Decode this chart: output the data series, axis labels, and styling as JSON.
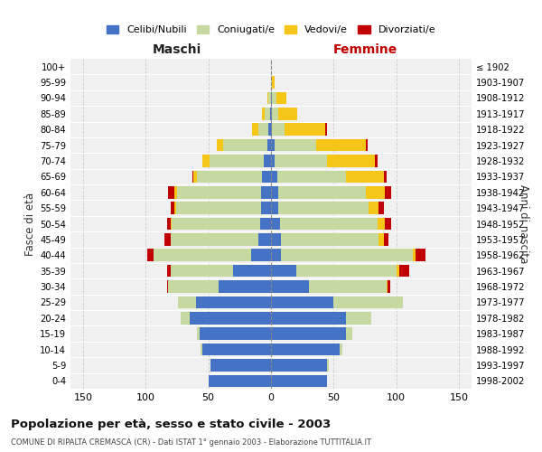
{
  "age_groups": [
    "0-4",
    "5-9",
    "10-14",
    "15-19",
    "20-24",
    "25-29",
    "30-34",
    "35-39",
    "40-44",
    "45-49",
    "50-54",
    "55-59",
    "60-64",
    "65-69",
    "70-74",
    "75-79",
    "80-84",
    "85-89",
    "90-94",
    "95-99",
    "100+"
  ],
  "birth_years": [
    "1998-2002",
    "1993-1997",
    "1988-1992",
    "1983-1987",
    "1978-1982",
    "1973-1977",
    "1968-1972",
    "1963-1967",
    "1958-1962",
    "1953-1957",
    "1948-1952",
    "1943-1947",
    "1938-1942",
    "1933-1937",
    "1928-1932",
    "1923-1927",
    "1918-1922",
    "1913-1917",
    "1908-1912",
    "1903-1907",
    "≤ 1902"
  ],
  "maschi": {
    "celibi": [
      50,
      48,
      55,
      57,
      65,
      60,
      42,
      30,
      16,
      10,
      9,
      8,
      8,
      7,
      6,
      3,
      2,
      1,
      0,
      0,
      0
    ],
    "coniugati": [
      0,
      0,
      1,
      2,
      7,
      14,
      40,
      50,
      78,
      70,
      70,
      68,
      67,
      52,
      43,
      35,
      8,
      4,
      2,
      0,
      0
    ],
    "vedovi": [
      0,
      0,
      0,
      0,
      0,
      0,
      0,
      0,
      0,
      0,
      1,
      1,
      2,
      3,
      6,
      5,
      5,
      2,
      1,
      0,
      0
    ],
    "divorziati": [
      0,
      0,
      0,
      0,
      0,
      0,
      1,
      3,
      5,
      5,
      3,
      3,
      5,
      1,
      0,
      0,
      0,
      0,
      0,
      0,
      0
    ]
  },
  "femmine": {
    "nubili": [
      45,
      45,
      55,
      60,
      60,
      50,
      30,
      20,
      8,
      8,
      7,
      6,
      6,
      5,
      3,
      3,
      1,
      1,
      1,
      0,
      0
    ],
    "coniugate": [
      0,
      1,
      2,
      5,
      20,
      55,
      62,
      80,
      105,
      78,
      78,
      72,
      70,
      55,
      42,
      33,
      10,
      5,
      3,
      1,
      0
    ],
    "vedove": [
      0,
      0,
      0,
      0,
      0,
      0,
      1,
      2,
      2,
      4,
      6,
      8,
      15,
      30,
      38,
      40,
      32,
      15,
      8,
      2,
      0
    ],
    "divorziate": [
      0,
      0,
      0,
      0,
      0,
      0,
      2,
      8,
      8,
      4,
      5,
      4,
      5,
      2,
      2,
      1,
      2,
      0,
      0,
      0,
      0
    ]
  },
  "colors": {
    "celibi_nubili": "#4472C4",
    "coniugati": "#c5d9a0",
    "vedovi": "#f5c518",
    "divorziati": "#c00000"
  },
  "title": "Popolazione per età, sesso e stato civile - 2003",
  "subtitle": "COMUNE DI RIPALTA CREMASCA (CR) - Dati ISTAT 1° gennaio 2003 - Elaborazione TUTTITALIA.IT",
  "xlabel_left": "Maschi",
  "xlabel_right": "Femmine",
  "ylabel_left": "Fasce di età",
  "ylabel_right": "Anni di nascita",
  "xlim": 160,
  "bg_color": "#ffffff",
  "plot_bg": "#f0f0f0",
  "grid_color": "#cccccc",
  "legend_labels": [
    "Celibi/Nubili",
    "Coniugati/e",
    "Vedovi/e",
    "Divorziati/e"
  ]
}
